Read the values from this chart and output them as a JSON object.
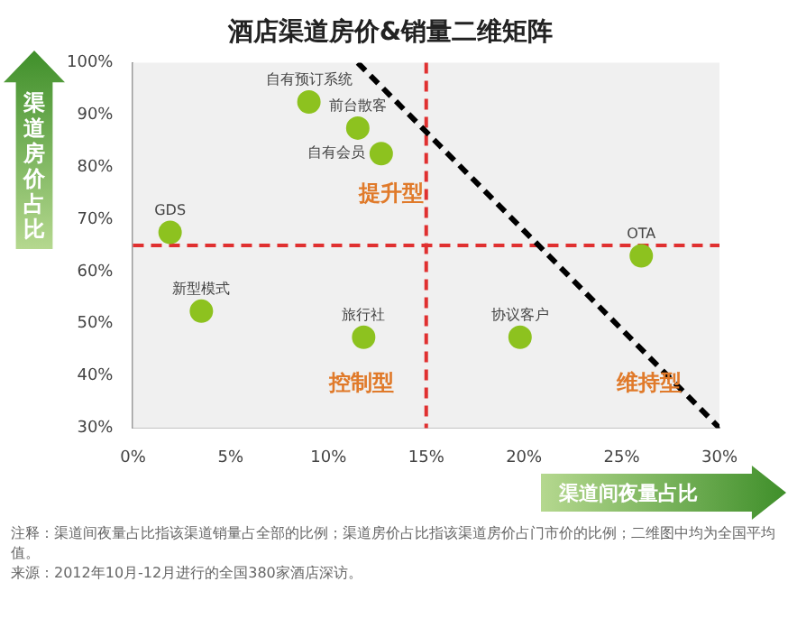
{
  "chart_data": {
    "type": "scatter",
    "title": "酒店渠道房价&销量二维矩阵",
    "xlabel": "渠道间夜量占比",
    "ylabel": "渠道房价占比",
    "series": [
      {
        "type": "scatter",
        "color": "#8dc21f",
        "x": [
          9,
          11.5,
          12.7,
          1.9,
          26,
          3.5,
          11.8,
          19.8
        ],
        "values": [
          92.5,
          87.5,
          82.6,
          67.5,
          63,
          52.4,
          47.4,
          47.4
        ]
      },
      {
        "type": "line",
        "color": "#000000",
        "line_style": "dashed",
        "marker": "none",
        "x": [
          11.5,
          30
        ],
        "values": [
          100,
          30
        ]
      }
    ],
    "marker": "circle",
    "ref_lines": [
      {
        "axis": "x",
        "value": 15,
        "color": "#e03030",
        "line_style": "dashed"
      },
      {
        "axis": "y",
        "value": 65,
        "color": "#e03030",
        "line_style": "dashed"
      }
    ],
    "annotations": [
      {
        "text": "自有预订系统",
        "x": 9,
        "y": 92.5
      },
      {
        "text": "前台散客",
        "x": 11.5,
        "y": 87.5
      },
      {
        "text": "自有会员",
        "x": 12.7,
        "y": 82.6
      },
      {
        "text": "GDS",
        "x": 1.9,
        "y": 67.5
      },
      {
        "text": "OTA",
        "x": 26,
        "y": 63
      },
      {
        "text": "新型模式",
        "x": 3.5,
        "y": 52.4
      },
      {
        "text": "旅行社",
        "x": 11.8,
        "y": 47.4
      },
      {
        "text": "协议客户",
        "x": 19.8,
        "y": 47.4
      },
      "提升型",
      "控制型",
      "维持型",
      "注释：渠道间夜量占比指该渠道销量占全部的比例；渠道房价占比指该渠道房价占门市价的比例；二维图中均为全国平均值。",
      "来源：2012年10月-12月进行的全国380家酒店深访。"
    ],
    "xlim": [
      0,
      30
    ],
    "xticks": [
      {
        "value": 0,
        "label": "0%"
      },
      {
        "value": 5,
        "label": "5%"
      },
      {
        "value": 10,
        "label": "10%"
      },
      {
        "value": 15,
        "label": "15%"
      },
      {
        "value": 20,
        "label": "20%"
      },
      {
        "value": 25,
        "label": "25%"
      },
      {
        "value": 30,
        "label": "30%"
      }
    ],
    "ylim": [
      30,
      100
    ],
    "yticks": [
      {
        "value": 30,
        "label": "30%"
      },
      {
        "value": 40,
        "label": "40%"
      },
      {
        "value": 50,
        "label": "50%"
      },
      {
        "value": 60,
        "label": "60%"
      },
      {
        "value": 70,
        "label": "70%"
      },
      {
        "value": 80,
        "label": "80%"
      },
      {
        "value": 90,
        "label": "90%"
      },
      {
        "value": 100,
        "label": "100%"
      }
    ],
    "grid": false,
    "legend": false
  }
}
